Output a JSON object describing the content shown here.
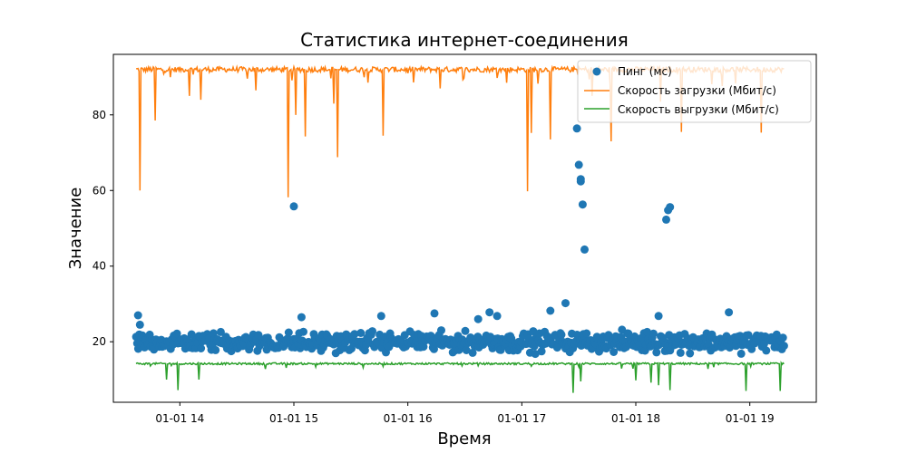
{
  "chart_data": {
    "type": "line",
    "title": "Статистика интернет-соединения",
    "xlabel": "Время",
    "ylabel": "Значение",
    "x_axis_kind": "datetime",
    "xlim": [
      "01-01 13:25",
      "01-01 19:35"
    ],
    "ylim": [
      4,
      96
    ],
    "x_ticks": [
      {
        "at": "01-01 14:00",
        "label": "01-01 14"
      },
      {
        "at": "01-01 15:00",
        "label": "01-01 15"
      },
      {
        "at": "01-01 16:00",
        "label": "01-01 16"
      },
      {
        "at": "01-01 17:00",
        "label": "01-01 17"
      },
      {
        "at": "01-01 18:00",
        "label": "01-01 18"
      },
      {
        "at": "01-01 19:00",
        "label": "01-01 19"
      }
    ],
    "y_ticks": [
      20,
      40,
      60,
      80
    ],
    "grid": false,
    "legend_position": "top-right",
    "series": [
      {
        "name": "Пинг (мс)",
        "kind": "scatter",
        "color": "#1f77b4",
        "time_range": [
          "01-01 13:37",
          "01-01 19:18"
        ],
        "typical_range": [
          17,
          23
        ],
        "outliers": [
          {
            "x": "01-01 13:38",
            "y": 27
          },
          {
            "x": "01-01 13:39",
            "y": 24.5
          },
          {
            "x": "01-01 15:00",
            "y": 55.8
          },
          {
            "x": "01-01 15:04",
            "y": 26.5
          },
          {
            "x": "01-01 15:46",
            "y": 26.8
          },
          {
            "x": "01-01 16:14",
            "y": 27.5
          },
          {
            "x": "01-01 16:37",
            "y": 26
          },
          {
            "x": "01-01 16:43",
            "y": 27.8
          },
          {
            "x": "01-01 16:47",
            "y": 26.8
          },
          {
            "x": "01-01 17:15",
            "y": 28.2
          },
          {
            "x": "01-01 17:23",
            "y": 30.2
          },
          {
            "x": "01-01 17:29",
            "y": 76.4
          },
          {
            "x": "01-01 17:30",
            "y": 66.8
          },
          {
            "x": "01-01 17:31",
            "y": 62.4
          },
          {
            "x": "01-01 17:31",
            "y": 63
          },
          {
            "x": "01-01 17:32",
            "y": 56.3
          },
          {
            "x": "01-01 17:33",
            "y": 44.4
          },
          {
            "x": "01-01 18:12",
            "y": 26.8
          },
          {
            "x": "01-01 18:16",
            "y": 52.3
          },
          {
            "x": "01-01 18:17",
            "y": 54.8
          },
          {
            "x": "01-01 18:18",
            "y": 55.6
          },
          {
            "x": "01-01 18:49",
            "y": 27.8
          }
        ]
      },
      {
        "name": "Скорость загрузки (Мбит/с)",
        "kind": "line",
        "color": "#ff7f0e",
        "time_range": [
          "01-01 13:37",
          "01-01 19:18"
        ],
        "baseline": 92,
        "dips": [
          {
            "x": "01-01 13:39",
            "y": 60
          },
          {
            "x": "01-01 13:47",
            "y": 78.5
          },
          {
            "x": "01-01 14:05",
            "y": 85
          },
          {
            "x": "01-01 14:11",
            "y": 84
          },
          {
            "x": "01-01 14:40",
            "y": 86.5
          },
          {
            "x": "01-01 14:57",
            "y": 58.2
          },
          {
            "x": "01-01 15:01",
            "y": 80
          },
          {
            "x": "01-01 15:06",
            "y": 74.3
          },
          {
            "x": "01-01 15:21",
            "y": 83
          },
          {
            "x": "01-01 15:23",
            "y": 68.8
          },
          {
            "x": "01-01 15:47",
            "y": 74.5
          },
          {
            "x": "01-01 16:17",
            "y": 87
          },
          {
            "x": "01-01 16:52",
            "y": 88.5
          },
          {
            "x": "01-01 17:03",
            "y": 59.8
          },
          {
            "x": "01-01 17:05",
            "y": 75.2
          },
          {
            "x": "01-01 17:15",
            "y": 73.5
          },
          {
            "x": "01-01 17:37",
            "y": 85
          },
          {
            "x": "01-01 17:47",
            "y": 73
          },
          {
            "x": "01-01 18:13",
            "y": 83.5
          },
          {
            "x": "01-01 18:24",
            "y": 75.5
          },
          {
            "x": "01-01 19:06",
            "y": 75.3
          }
        ]
      },
      {
        "name": "Скорость выгрузки (Мбит/с)",
        "kind": "line",
        "color": "#2ca02c",
        "time_range": [
          "01-01 13:37",
          "01-01 19:18"
        ],
        "baseline": 14.2,
        "dips": [
          {
            "x": "01-01 13:53",
            "y": 10
          },
          {
            "x": "01-01 13:59",
            "y": 7.2
          },
          {
            "x": "01-01 14:10",
            "y": 10
          },
          {
            "x": "01-01 17:27",
            "y": 6.5
          },
          {
            "x": "01-01 17:31",
            "y": 9.5
          },
          {
            "x": "01-01 18:00",
            "y": 9.8
          },
          {
            "x": "01-01 18:08",
            "y": 9.2
          },
          {
            "x": "01-01 18:12",
            "y": 8.5
          },
          {
            "x": "01-01 18:18",
            "y": 7.2
          },
          {
            "x": "01-01 18:58",
            "y": 7
          },
          {
            "x": "01-01 19:16",
            "y": 7
          }
        ]
      }
    ]
  }
}
